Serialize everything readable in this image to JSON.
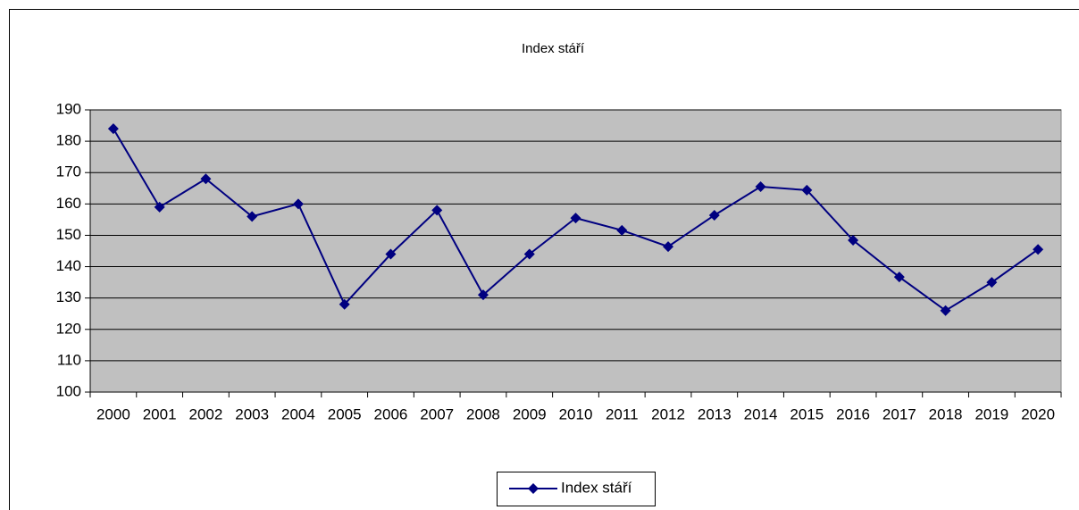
{
  "chart_data": {
    "type": "line",
    "title": "Index stáří",
    "categories": [
      "2000",
      "2001",
      "2002",
      "2003",
      "2004",
      "2005",
      "2006",
      "2007",
      "2008",
      "2009",
      "2010",
      "2011",
      "2012",
      "2013",
      "2014",
      "2015",
      "2016",
      "2017",
      "2018",
      "2019",
      "2020"
    ],
    "series": [
      {
        "name": "Index stáří",
        "color": "#000080",
        "values": [
          184,
          159,
          168,
          156,
          160,
          128,
          144,
          158,
          131,
          144,
          155.5,
          151.6,
          146.4,
          156.4,
          165.5,
          164.4,
          148.4,
          136.7,
          126,
          135,
          145.5
        ]
      }
    ],
    "ylim": [
      100,
      190
    ],
    "yticks": [
      100,
      110,
      120,
      130,
      140,
      150,
      160,
      170,
      180,
      190
    ],
    "grid": true,
    "plot_background": "#c0c0c0",
    "legend": "bottom"
  }
}
